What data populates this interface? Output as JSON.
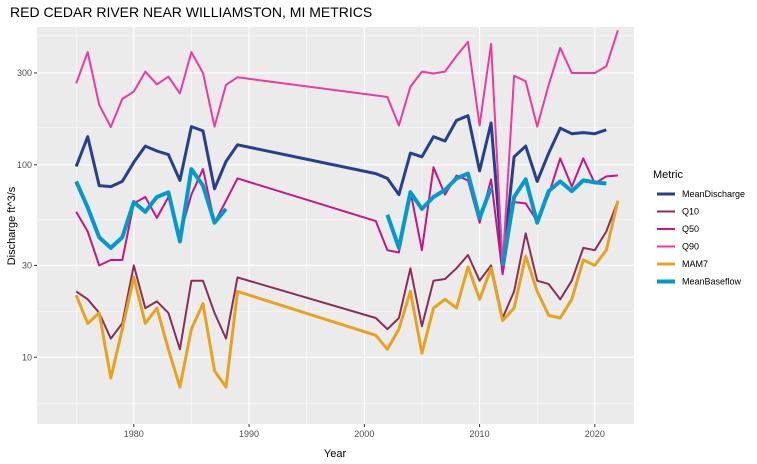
{
  "chart_data": {
    "type": "line",
    "title": "RED CEDAR RIVER NEAR WILLIAMSTON, MI  METRICS",
    "xlabel": "Year",
    "ylabel": "Discharge ft^3/s",
    "xlim": [
      1971.6,
      2023.4
    ],
    "ylim": [
      4.5,
      520
    ],
    "y_scale": "log10",
    "x_ticks": [
      1980,
      1990,
      2000,
      2010,
      2020
    ],
    "y_ticks": [
      10,
      30,
      100,
      300
    ],
    "grid": true,
    "legend": {
      "title": "Metric",
      "position": "right"
    },
    "series": [
      {
        "name": "MeanDischarge",
        "color": "#27408b",
        "width": 3,
        "points": [
          [
            1975,
            98
          ],
          [
            1976,
            140
          ],
          [
            1977,
            78
          ],
          [
            1978,
            77
          ],
          [
            1979,
            82
          ],
          [
            1980,
            103
          ],
          [
            1981,
            125
          ],
          [
            1982,
            118
          ],
          [
            1983,
            113
          ],
          [
            1984,
            83
          ],
          [
            1985,
            158
          ],
          [
            1986,
            150
          ],
          [
            1987,
            75
          ],
          [
            1988,
            104
          ],
          [
            1989,
            127
          ],
          [
            2001,
            90
          ],
          [
            2002,
            85
          ],
          [
            2003,
            70
          ],
          [
            2004,
            115
          ],
          [
            2005,
            110
          ],
          [
            2006,
            140
          ],
          [
            2007,
            133
          ],
          [
            2008,
            170
          ],
          [
            2009,
            180
          ],
          [
            2010,
            93
          ],
          [
            2011,
            165
          ],
          [
            2012,
            30
          ],
          [
            2013,
            110
          ],
          [
            2014,
            125
          ],
          [
            2015,
            82
          ],
          [
            2016,
            115
          ],
          [
            2017,
            155
          ],
          [
            2018,
            145
          ],
          [
            2019,
            147
          ],
          [
            2020,
            145
          ],
          [
            2021,
            152
          ]
        ]
      },
      {
        "name": "Q10",
        "color": "#8b2d5a",
        "width": 2,
        "points": [
          [
            1975,
            22
          ],
          [
            1976,
            20
          ],
          [
            1977,
            17
          ],
          [
            1978,
            12.5
          ],
          [
            1979,
            15
          ],
          [
            1980,
            30
          ],
          [
            1981,
            18
          ],
          [
            1982,
            19.5
          ],
          [
            1983,
            17
          ],
          [
            1984,
            11
          ],
          [
            1985,
            25
          ],
          [
            1986,
            25
          ],
          [
            1987,
            17
          ],
          [
            1988,
            12.5
          ],
          [
            1989,
            26
          ],
          [
            2001,
            16
          ],
          [
            2002,
            14
          ],
          [
            2003,
            16
          ],
          [
            2004,
            29
          ],
          [
            2005,
            14.5
          ],
          [
            2006,
            25
          ],
          [
            2007,
            25.5
          ],
          [
            2008,
            29
          ],
          [
            2009,
            34
          ],
          [
            2010,
            25
          ],
          [
            2011,
            30
          ],
          [
            2012,
            16
          ],
          [
            2013,
            22
          ],
          [
            2014,
            44
          ],
          [
            2015,
            25
          ],
          [
            2016,
            24
          ],
          [
            2017,
            20
          ],
          [
            2018,
            25
          ],
          [
            2019,
            37
          ],
          [
            2020,
            36
          ],
          [
            2021,
            45
          ],
          [
            2022,
            65
          ]
        ]
      },
      {
        "name": "Q50",
        "color": "#c71585",
        "width": 2,
        "points": [
          [
            1975,
            57
          ],
          [
            1976,
            45
          ],
          [
            1977,
            30
          ],
          [
            1978,
            32
          ],
          [
            1979,
            32
          ],
          [
            1980,
            63
          ],
          [
            1981,
            68
          ],
          [
            1982,
            53
          ],
          [
            1983,
            68
          ],
          [
            1984,
            43
          ],
          [
            1985,
            70
          ],
          [
            1986,
            95
          ],
          [
            1987,
            50
          ],
          [
            1988,
            65
          ],
          [
            1989,
            85
          ],
          [
            2001,
            51
          ],
          [
            2002,
            36
          ],
          [
            2003,
            35
          ],
          [
            2004,
            73
          ],
          [
            2005,
            36
          ],
          [
            2006,
            97
          ],
          [
            2007,
            70
          ],
          [
            2008,
            88
          ],
          [
            2009,
            83
          ],
          [
            2010,
            50
          ],
          [
            2011,
            84
          ],
          [
            2012,
            27
          ],
          [
            2013,
            64
          ],
          [
            2014,
            63
          ],
          [
            2015,
            51
          ],
          [
            2016,
            70
          ],
          [
            2017,
            108
          ],
          [
            2018,
            77
          ],
          [
            2019,
            108
          ],
          [
            2020,
            80
          ],
          [
            2021,
            87
          ],
          [
            2022,
            88
          ]
        ]
      },
      {
        "name": "Q90",
        "color": "#ee3a9e",
        "width": 2,
        "points": [
          [
            1975,
            265
          ],
          [
            1976,
            385
          ],
          [
            1977,
            205
          ],
          [
            1978,
            157
          ],
          [
            1979,
            220
          ],
          [
            1980,
            240
          ],
          [
            1981,
            305
          ],
          [
            1982,
            262
          ],
          [
            1983,
            287
          ],
          [
            1984,
            235
          ],
          [
            1985,
            385
          ],
          [
            1986,
            300
          ],
          [
            1987,
            158
          ],
          [
            1988,
            260
          ],
          [
            1989,
            285
          ],
          [
            2002,
            225
          ],
          [
            2003,
            160
          ],
          [
            2004,
            255
          ],
          [
            2005,
            305
          ],
          [
            2006,
            298
          ],
          [
            2007,
            305
          ],
          [
            2008,
            368
          ],
          [
            2009,
            435
          ],
          [
            2010,
            160
          ],
          [
            2011,
            425
          ],
          [
            2012,
            30
          ],
          [
            2013,
            290
          ],
          [
            2014,
            272
          ],
          [
            2015,
            158
          ],
          [
            2016,
            260
          ],
          [
            2017,
            405
          ],
          [
            2018,
            300
          ],
          [
            2019,
            300
          ],
          [
            2020,
            300
          ],
          [
            2021,
            325
          ],
          [
            2022,
            500
          ]
        ]
      },
      {
        "name": "MAM7",
        "color": "#e8a31e",
        "width": 3,
        "points": [
          [
            1975,
            21
          ],
          [
            1976,
            15
          ],
          [
            1977,
            17
          ],
          [
            1978,
            7.8
          ],
          [
            1979,
            14
          ],
          [
            1980,
            26
          ],
          [
            1981,
            15
          ],
          [
            1982,
            18
          ],
          [
            1983,
            11
          ],
          [
            1984,
            7
          ],
          [
            1985,
            14
          ],
          [
            1986,
            19
          ],
          [
            1987,
            8.5
          ],
          [
            1988,
            7
          ],
          [
            1989,
            22
          ],
          [
            2001,
            13
          ],
          [
            2002,
            11
          ],
          [
            2003,
            14
          ],
          [
            2004,
            22
          ],
          [
            2005,
            10.5
          ],
          [
            2006,
            18
          ],
          [
            2007,
            20
          ],
          [
            2008,
            18
          ],
          [
            2009,
            29.5
          ],
          [
            2010,
            20
          ],
          [
            2011,
            29
          ],
          [
            2012,
            15.5
          ],
          [
            2013,
            18
          ],
          [
            2014,
            33.5
          ],
          [
            2015,
            22
          ],
          [
            2016,
            16.5
          ],
          [
            2017,
            16
          ],
          [
            2018,
            20
          ],
          [
            2019,
            32
          ],
          [
            2020,
            30
          ],
          [
            2021,
            36
          ],
          [
            2022,
            65
          ]
        ]
      },
      {
        "name": "MeanBaseflow",
        "color": "#009acd",
        "width": 4,
        "segments": [
          [
            [
              1975,
              82
            ],
            [
              1976,
              60
            ],
            [
              1977,
              42
            ],
            [
              1978,
              37
            ],
            [
              1979,
              42
            ],
            [
              1980,
              64
            ],
            [
              1981,
              57
            ],
            [
              1982,
              68
            ],
            [
              1983,
              72
            ],
            [
              1984,
              40
            ],
            [
              1985,
              95
            ],
            [
              1986,
              78
            ],
            [
              1987,
              50
            ],
            [
              1988,
              59
            ]
          ],
          [
            [
              2002,
              55
            ],
            [
              2003,
              37
            ],
            [
              2004,
              72
            ],
            [
              2005,
              59
            ],
            [
              2006,
              68
            ],
            [
              2007,
              74
            ],
            [
              2008,
              85
            ],
            [
              2009,
              90
            ],
            [
              2010,
              53
            ],
            [
              2011,
              76
            ]
          ],
          [
            [
              2012,
              30
            ],
            [
              2013,
              68
            ],
            [
              2014,
              84
            ],
            [
              2015,
              50
            ],
            [
              2016,
              73
            ],
            [
              2017,
              82
            ],
            [
              2018,
              73
            ],
            [
              2019,
              83
            ],
            [
              2020,
              81
            ],
            [
              2021,
              80
            ]
          ]
        ]
      }
    ]
  }
}
